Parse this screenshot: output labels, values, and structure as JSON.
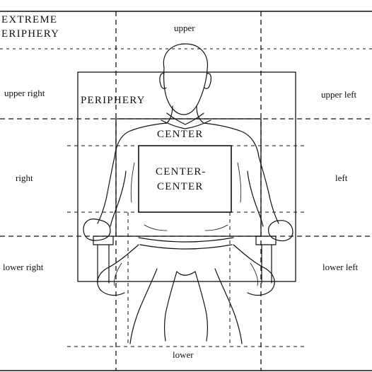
{
  "labels": {
    "extreme_periphery_line1": "EXTREME",
    "extreme_periphery_line2": "ERIPHERY",
    "periphery": "PERIPHERY",
    "center": "CENTER",
    "center_center_line1": "CENTER-",
    "center_center_line2": "CENTER",
    "upper": "upper",
    "upper_right": "upper right",
    "upper_left": "upper left",
    "right": "right",
    "left": "left",
    "lower_right": "lower right",
    "lower_left": "lower left",
    "lower": "lower"
  },
  "colors": {
    "ink": "#111111",
    "background": "#ffffff"
  }
}
